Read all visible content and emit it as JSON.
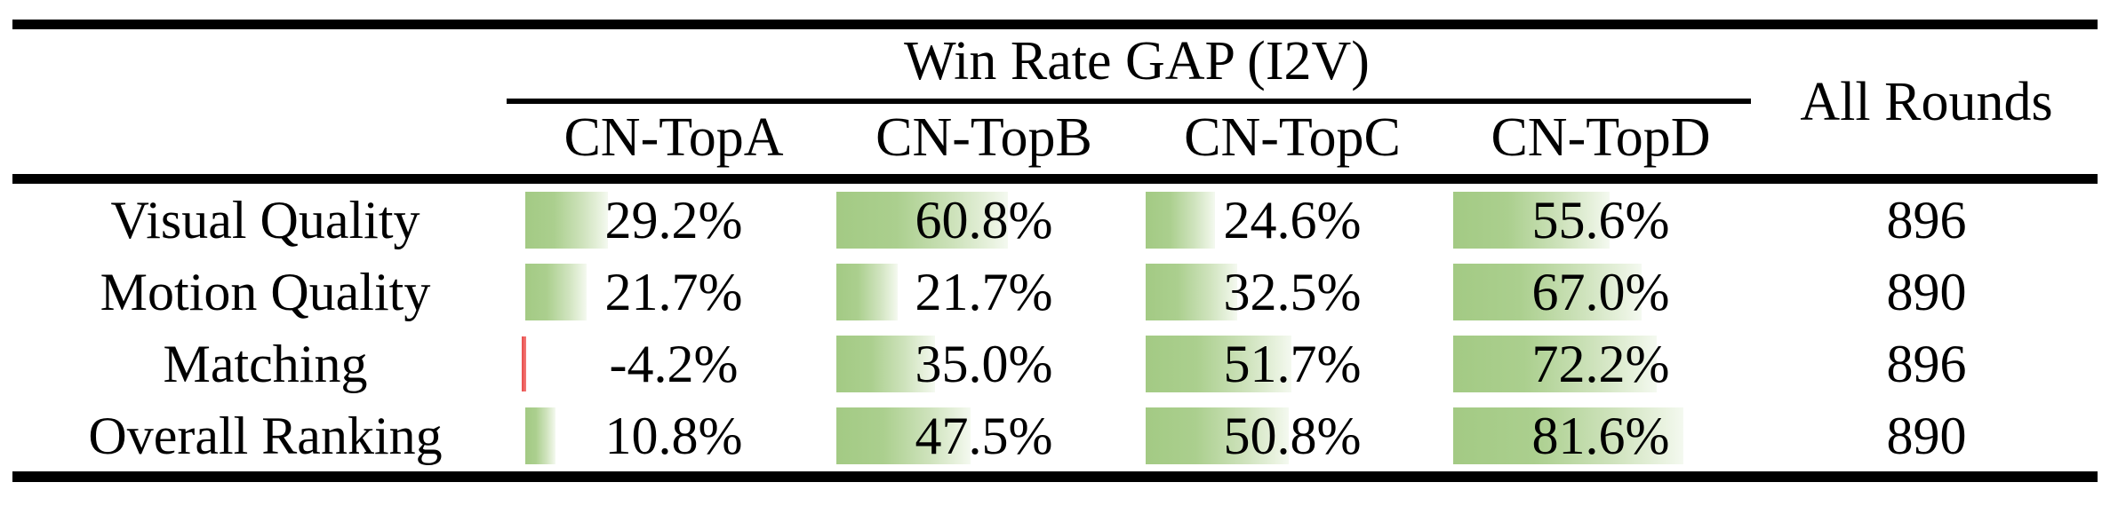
{
  "table": {
    "group_header": "Win Rate GAP (I2V)",
    "all_rounds_header": "All Rounds",
    "column_headers": [
      "CN-TopA",
      "CN-TopB",
      "CN-TopC",
      "CN-TopD"
    ],
    "rows": [
      {
        "label": "Visual Quality",
        "display": [
          "29.2%",
          "60.8%",
          "24.6%",
          "55.6%"
        ],
        "values": [
          29.2,
          60.8,
          24.6,
          55.6
        ],
        "all_rounds": "896"
      },
      {
        "label": "Motion Quality",
        "display": [
          "21.7%",
          "21.7%",
          "32.5%",
          "67.0%"
        ],
        "values": [
          21.7,
          21.7,
          32.5,
          67.0
        ],
        "all_rounds": "890"
      },
      {
        "label": "Matching",
        "display": [
          "-4.2%",
          "35.0%",
          "51.7%",
          "72.2%"
        ],
        "values": [
          -4.2,
          35.0,
          51.7,
          72.2
        ],
        "all_rounds": "896"
      },
      {
        "label": "Overall Ranking",
        "display": [
          "10.8%",
          "47.5%",
          "50.8%",
          "81.6%"
        ],
        "values": [
          10.8,
          47.5,
          50.8,
          81.6
        ],
        "all_rounds": "890"
      }
    ],
    "colors": {
      "positive_bar_start": "#a3ca84",
      "positive_bar_end": "#f4f9f0",
      "negative_bar": "#e84c4b",
      "rule": "#000000",
      "background": "#ffffff"
    }
  },
  "chart_data": {
    "type": "table",
    "title": "Win Rate GAP (I2V)",
    "columns": [
      "CN-TopA",
      "CN-TopB",
      "CN-TopC",
      "CN-TopD",
      "All Rounds"
    ],
    "series": [
      {
        "name": "Visual Quality",
        "values": [
          29.2,
          60.8,
          24.6,
          55.6
        ],
        "all_rounds": 896
      },
      {
        "name": "Motion Quality",
        "values": [
          21.7,
          21.7,
          32.5,
          67.0
        ],
        "all_rounds": 890
      },
      {
        "name": "Matching",
        "values": [
          -4.2,
          35.0,
          51.7,
          72.2
        ],
        "all_rounds": 896
      },
      {
        "name": "Overall Ranking",
        "values": [
          10.8,
          47.5,
          50.8,
          81.6
        ],
        "all_rounds": 890
      }
    ],
    "units": "percent",
    "bar_style": "in-cell green gradient data bars, red for negative"
  }
}
